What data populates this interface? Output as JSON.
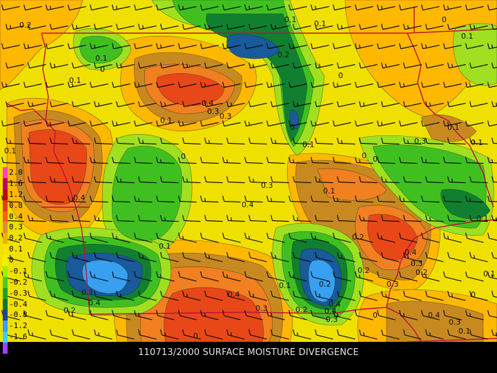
{
  "caption": "110713/2000 SURFACE MOISTURE DIVERGENCE",
  "legend": {
    "labels": [
      "2.0",
      "1.6",
      "1.2",
      "0.8",
      "0.4",
      "0.3",
      "0.2",
      "0.1",
      "0",
      "-0.1",
      "-0.2",
      "-0.3",
      "-0.4",
      "-0.8",
      "-1.2",
      "-1.6",
      "-2.0"
    ],
    "colors": [
      "#ff40c0",
      "#c00060",
      "#c00000",
      "#e04010",
      "#ff6010",
      "#e09030",
      "#f0b000",
      "#ffe000",
      "#f0f000",
      "#9ef000",
      "#40d020",
      "#20a020",
      "#107040",
      "#2040a0",
      "#30a0ff",
      "#40d0ff",
      "#a040ff"
    ]
  },
  "fill_colors": {
    "bg": "#f0e000",
    "pos01": "#ffb800",
    "pos02": "#c88a20",
    "pos03": "#f08020",
    "pos04": "#e84818",
    "neg01": "#a0e020",
    "neg02": "#40c020",
    "neg03": "#108030",
    "neg04": "#185a9a",
    "neg08": "#38a0f0"
  },
  "contour_labels": [
    "0.2",
    "0.1",
    "0.1",
    "0",
    "0.1",
    "0.1",
    "0",
    "0.1",
    "0",
    "0.1",
    "0.3",
    "0.4",
    "0.3",
    "0.2",
    "0",
    "0.1",
    "0.3",
    "0.1",
    "0",
    "0",
    "0.1",
    "0.1",
    "0.1",
    "0.4",
    "0",
    "0.3",
    "0.2",
    "0.1",
    "0.4",
    "0.3",
    "0.2",
    "0",
    "0.1",
    "0.1",
    "0.4",
    "0.4",
    "0.3",
    "0.2",
    "0.2",
    "0.4",
    "0.4",
    "0.3",
    "0.1",
    "0",
    "0.2",
    "0.2",
    "0.3",
    "0.4",
    "0.3",
    "0.1",
    "0",
    "0.4",
    "0.1"
  ],
  "colors": {
    "border": "#c0103a",
    "barb": "#000000",
    "caption_bg": "#000000",
    "caption_text": "#e6e6e6"
  }
}
